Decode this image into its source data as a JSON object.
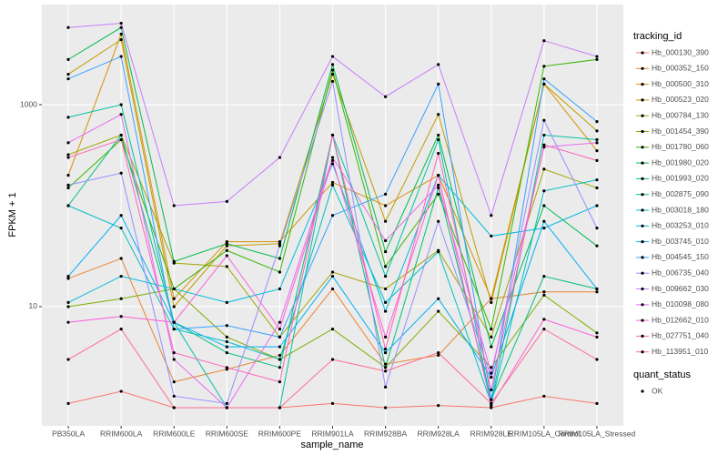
{
  "chart_data": {
    "type": "line",
    "log_y": true,
    "grid": true,
    "xlabel": "sample_name",
    "ylabel": "FPKM + 1",
    "legend_title": "tracking_id",
    "legend_position": "right",
    "point_legend_title": "quant_status",
    "point_legend_label": "OK",
    "point_color": "#000000",
    "categories": [
      "PB350LA",
      "RRIM600LA",
      "RRIM600LE",
      "RRIM600SE",
      "RRIM600PE",
      "RRIM901LA",
      "RRIM928BA",
      "RRIM928LA",
      "RRIM928LE",
      "RRIM105LA_Control",
      "RRIM105LA_Stressed"
    ],
    "ylim": [
      0.66,
      9800
    ],
    "yticks": [
      10,
      1000
    ],
    "series": [
      {
        "name": "Hb_000130_390",
        "color": "#F8766D",
        "values": [
          1.1,
          1.45,
          1.0,
          1.0,
          1.0,
          1.1,
          1.0,
          1.05,
          1.0,
          1.3,
          1.1
        ]
      },
      {
        "name": "Hb_000352_150",
        "color": "#EA8331",
        "values": [
          19,
          30,
          1.8,
          2.4,
          3.3,
          15,
          2.7,
          3.3,
          12,
          14,
          14
        ]
      },
      {
        "name": "Hb_000500_310",
        "color": "#D89000",
        "values": [
          200,
          5000,
          12,
          44,
          44,
          170,
          100,
          200,
          12,
          1600,
          350
        ]
      },
      {
        "name": "Hb_000523_020",
        "color": "#C09B00",
        "values": [
          2000,
          4400,
          10,
          40,
          42,
          2000,
          70,
          800,
          11,
          1600,
          550
        ]
      },
      {
        "name": "Hb_000784_130",
        "color": "#A3A500",
        "values": [
          320,
          500,
          27,
          25,
          5,
          22,
          15,
          36,
          5,
          230,
          150
        ]
      },
      {
        "name": "Hb_001454_390",
        "color": "#7CAE00",
        "values": [
          10,
          12,
          15,
          5,
          3,
          6,
          2.5,
          9,
          2.5,
          13,
          5.5
        ]
      },
      {
        "name": "Hb_001780_060",
        "color": "#39B600",
        "values": [
          150,
          450,
          15,
          36,
          22,
          2200,
          25,
          130,
          6,
          2400,
          2800
        ]
      },
      {
        "name": "Hb_001980_020",
        "color": "#00BB4E",
        "values": [
          2800,
          5800,
          28,
          42,
          30,
          2500,
          35,
          500,
          4,
          100,
          40
        ]
      },
      {
        "name": "Hb_001993_020",
        "color": "#00BF7D",
        "values": [
          100,
          500,
          7,
          3.5,
          2.5,
          500,
          2.5,
          150,
          1.2,
          20,
          15
        ]
      },
      {
        "name": "Hb_002875_090",
        "color": "#00C1A3",
        "values": [
          750,
          1000,
          7,
          1.0,
          1.0,
          500,
          20,
          450,
          1.1,
          500,
          450
        ]
      },
      {
        "name": "Hb_003018_180",
        "color": "#00BFC4",
        "values": [
          100,
          60,
          6,
          4.5,
          3,
          160,
          11,
          35,
          1.1,
          140,
          180
        ]
      },
      {
        "name": "Hb_003253_010",
        "color": "#00BAE0",
        "values": [
          11,
          20,
          15,
          11,
          15,
          260,
          9,
          200,
          50,
          60,
          100
        ]
      },
      {
        "name": "Hb_003745_010",
        "color": "#00B0F6",
        "values": [
          20,
          80,
          7,
          4,
          4,
          20,
          3.5,
          12,
          2,
          70,
          15
        ]
      },
      {
        "name": "Hb_004545_150",
        "color": "#35A2FF",
        "values": [
          1800,
          3000,
          6,
          6.5,
          5,
          80,
          130,
          1600,
          1.2,
          1800,
          680
        ]
      },
      {
        "name": "Hb_006735_040",
        "color": "#9590FF",
        "values": [
          160,
          210,
          1.3,
          1.1,
          40,
          1700,
          1.6,
          70,
          2.0,
          700,
          60
        ]
      },
      {
        "name": "Hb_009662_030",
        "color": "#C77CFF",
        "values": [
          5800,
          6400,
          100,
          110,
          300,
          3000,
          1200,
          2500,
          80,
          4300,
          3000
        ]
      },
      {
        "name": "Hb_010098_080",
        "color": "#E76BF3",
        "values": [
          420,
          800,
          3,
          1.0,
          7,
          300,
          45,
          160,
          2.2,
          380,
          420
        ]
      },
      {
        "name": "Hb_012662_010",
        "color": "#FA62DB",
        "values": [
          7,
          8,
          7,
          32,
          6,
          280,
          5,
          200,
          1.05,
          7.5,
          5
        ]
      },
      {
        "name": "Hb_027751_040",
        "color": "#FF62BC",
        "values": [
          300,
          450,
          3.5,
          2.5,
          1.8,
          500,
          3.8,
          330,
          1.5,
          400,
          280
        ]
      },
      {
        "name": "Hb_113951_010",
        "color": "#FF6C91",
        "values": [
          3,
          6,
          1,
          1,
          1,
          3,
          2.3,
          3.5,
          1.1,
          6,
          3
        ]
      }
    ]
  }
}
